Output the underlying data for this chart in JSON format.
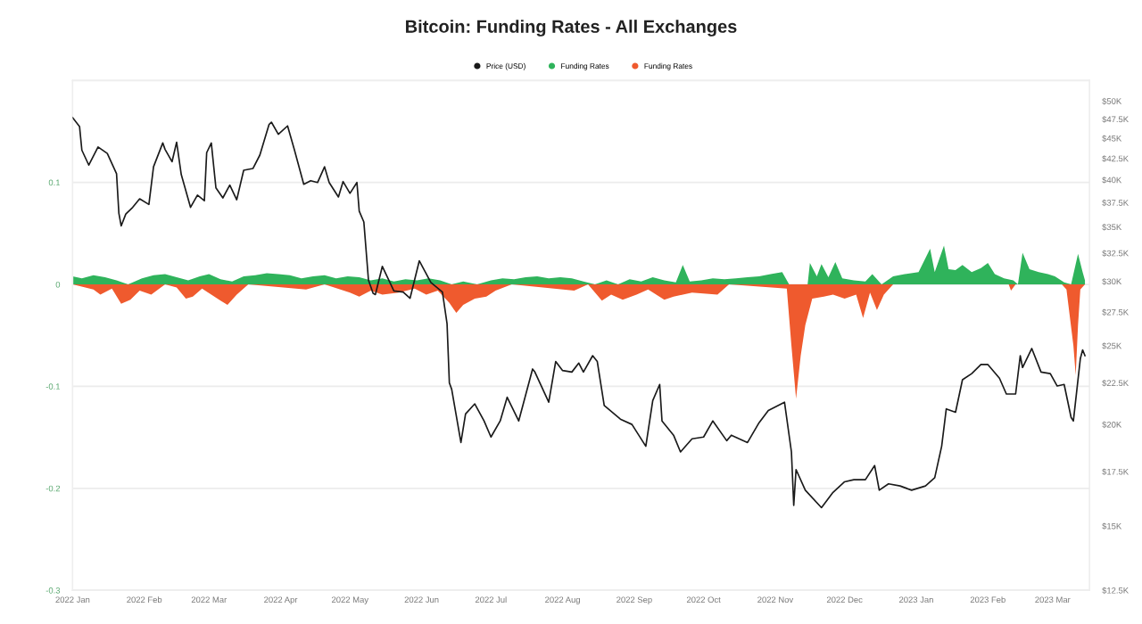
{
  "chart_data": {
    "type": "line",
    "title": "Bitcoin: Funding Rates - All Exchanges",
    "legend": "top",
    "grid": "y",
    "log": "y2",
    "xlim": [
      "2022-01-01",
      "2023-03-17"
    ],
    "xticks": [
      {
        "value": "2022-01-01",
        "label": "2022 Jan"
      },
      {
        "value": "2022-02-01",
        "label": "2022 Feb"
      },
      {
        "value": "2022-03-01",
        "label": "2022 Mar"
      },
      {
        "value": "2022-04-01",
        "label": "2022 Apr"
      },
      {
        "value": "2022-05-01",
        "label": "2022 May"
      },
      {
        "value": "2022-06-01",
        "label": "2022 Jun"
      },
      {
        "value": "2022-07-01",
        "label": "2022 Jul"
      },
      {
        "value": "2022-08-01",
        "label": "2022 Aug"
      },
      {
        "value": "2022-09-01",
        "label": "2022 Sep"
      },
      {
        "value": "2022-10-01",
        "label": "2022 Oct"
      },
      {
        "value": "2022-11-01",
        "label": "2022 Nov"
      },
      {
        "value": "2022-12-01",
        "label": "2022 Dec"
      },
      {
        "value": "2023-01-01",
        "label": "2023 Jan"
      },
      {
        "value": "2023-02-01",
        "label": "2023 Feb"
      },
      {
        "value": "2023-03-01",
        "label": "2023 Mar"
      }
    ],
    "ylim": [
      -0.3,
      0.2
    ],
    "yticks": [
      {
        "value": 0.2,
        "label": null
      },
      0.1,
      0,
      -0.1,
      -0.2,
      -0.3
    ],
    "y2lim": [
      12500,
      53000
    ],
    "y2ticks": [
      {
        "value": 12500,
        "label": "$12.5K"
      },
      {
        "value": 15000,
        "label": "$15K"
      },
      {
        "value": 17500,
        "label": "$17.5K"
      },
      {
        "value": 20000,
        "label": "$20K"
      },
      {
        "value": 22500,
        "label": "$22.5K"
      },
      {
        "value": 25000,
        "label": "$25K"
      },
      {
        "value": 27500,
        "label": "$27.5K"
      },
      {
        "value": 30000,
        "label": "$30K"
      },
      {
        "value": 32500,
        "label": "$32.5K"
      },
      {
        "value": 35000,
        "label": "$35K"
      },
      {
        "value": 37500,
        "label": "$37.5K"
      },
      {
        "value": 40000,
        "label": "$40K"
      },
      {
        "value": 42500,
        "label": "$42.5K"
      },
      {
        "value": 45000,
        "label": "$45K"
      },
      {
        "value": 47500,
        "label": "$47.5K"
      },
      {
        "value": 50000,
        "label": "$50K"
      }
    ],
    "series": [
      {
        "name": "Price (USD)",
        "axis": "y2",
        "color": "#1a1a1a",
        "x": [
          "2022-01-01",
          "2022-01-04",
          "2022-01-05",
          "2022-01-08",
          "2022-01-12",
          "2022-01-16",
          "2022-01-20",
          "2022-01-21",
          "2022-01-22",
          "2022-01-24",
          "2022-01-27",
          "2022-01-30",
          "2022-02-03",
          "2022-02-05",
          "2022-02-09",
          "2022-02-10",
          "2022-02-13",
          "2022-02-15",
          "2022-02-17",
          "2022-02-21",
          "2022-02-24",
          "2022-02-27",
          "2022-02-28",
          "2022-03-02",
          "2022-03-04",
          "2022-03-07",
          "2022-03-10",
          "2022-03-13",
          "2022-03-16",
          "2022-03-20",
          "2022-03-23",
          "2022-03-27",
          "2022-03-28",
          "2022-03-31",
          "2022-04-04",
          "2022-04-07",
          "2022-04-11",
          "2022-04-14",
          "2022-04-17",
          "2022-04-20",
          "2022-04-22",
          "2022-04-26",
          "2022-04-28",
          "2022-05-01",
          "2022-05-04",
          "2022-05-05",
          "2022-05-07",
          "2022-05-09",
          "2022-05-11",
          "2022-05-12",
          "2022-05-15",
          "2022-05-20",
          "2022-05-24",
          "2022-05-27",
          "2022-05-31",
          "2022-06-05",
          "2022-06-10",
          "2022-06-12",
          "2022-06-13",
          "2022-06-14",
          "2022-06-18",
          "2022-06-20",
          "2022-06-24",
          "2022-06-28",
          "2022-07-01",
          "2022-07-05",
          "2022-07-08",
          "2022-07-13",
          "2022-07-19",
          "2022-07-20",
          "2022-07-26",
          "2022-07-29",
          "2022-08-01",
          "2022-08-05",
          "2022-08-08",
          "2022-08-10",
          "2022-08-14",
          "2022-08-16",
          "2022-08-19",
          "2022-08-26",
          "2022-08-31",
          "2022-09-06",
          "2022-09-09",
          "2022-09-12",
          "2022-09-13",
          "2022-09-18",
          "2022-09-21",
          "2022-09-26",
          "2022-10-01",
          "2022-10-05",
          "2022-10-11",
          "2022-10-13",
          "2022-10-20",
          "2022-10-25",
          "2022-10-29",
          "2022-11-05",
          "2022-11-08",
          "2022-11-09",
          "2022-11-10",
          "2022-11-14",
          "2022-11-21",
          "2022-11-26",
          "2022-12-01",
          "2022-12-05",
          "2022-12-10",
          "2022-12-14",
          "2022-12-16",
          "2022-12-20",
          "2022-12-25",
          "2022-12-30",
          "2023-01-05",
          "2023-01-09",
          "2023-01-12",
          "2023-01-14",
          "2023-01-18",
          "2023-01-21",
          "2023-01-25",
          "2023-01-29",
          "2023-02-01",
          "2023-02-06",
          "2023-02-09",
          "2023-02-13",
          "2023-02-15",
          "2023-02-16",
          "2023-02-20",
          "2023-02-24",
          "2023-02-28",
          "2023-03-03",
          "2023-03-06",
          "2023-03-09",
          "2023-03-10",
          "2023-03-13",
          "2023-03-14",
          "2023-03-15"
        ],
        "values": [
          47700,
          46500,
          43500,
          41700,
          43900,
          43100,
          40700,
          36400,
          35100,
          36300,
          37000,
          37900,
          37300,
          41500,
          44400,
          43600,
          42100,
          44500,
          40600,
          37000,
          38300,
          37700,
          43200,
          44400,
          39100,
          38000,
          39400,
          37800,
          41100,
          41300,
          42900,
          46800,
          47100,
          45500,
          46600,
          43500,
          39500,
          39900,
          39700,
          41500,
          39700,
          38100,
          39800,
          38500,
          39700,
          36600,
          35500,
          30100,
          29000,
          28900,
          31300,
          29200,
          29100,
          28600,
          31800,
          29900,
          29100,
          26600,
          22500,
          22100,
          19000,
          20600,
          21200,
          20200,
          19300,
          20200,
          21600,
          20200,
          23400,
          23200,
          21300,
          23900,
          23300,
          23200,
          23800,
          23200,
          24300,
          23900,
          21100,
          20300,
          20000,
          18800,
          21400,
          22400,
          20200,
          19400,
          18500,
          19200,
          19300,
          20200,
          19100,
          19400,
          19000,
          20100,
          20800,
          21300,
          18500,
          15900,
          17600,
          16600,
          15800,
          16500,
          17000,
          17100,
          17100,
          17800,
          16600,
          16900,
          16800,
          16600,
          16800,
          17200,
          18800,
          20900,
          20700,
          22700,
          23100,
          23700,
          23700,
          22800,
          21800,
          21800,
          24300,
          23500,
          24800,
          23200,
          23100,
          22300,
          22400,
          20400,
          20200,
          24100,
          24700,
          24300
        ]
      },
      {
        "name": "Funding Rates",
        "type": "area",
        "color": "#2fb35b",
        "x": [
          "2022-01-01",
          "2022-01-05",
          "2022-01-10",
          "2022-01-15",
          "2022-01-20",
          "2022-01-25",
          "2022-01-31",
          "2022-02-05",
          "2022-02-10",
          "2022-02-15",
          "2022-02-20",
          "2022-02-25",
          "2022-03-01",
          "2022-03-06",
          "2022-03-11",
          "2022-03-16",
          "2022-03-21",
          "2022-03-26",
          "2022-03-31",
          "2022-04-05",
          "2022-04-10",
          "2022-04-15",
          "2022-04-20",
          "2022-04-25",
          "2022-04-30",
          "2022-05-05",
          "2022-05-10",
          "2022-05-15",
          "2022-05-20",
          "2022-05-25",
          "2022-05-30",
          "2022-06-04",
          "2022-06-09",
          "2022-06-14",
          "2022-06-19",
          "2022-06-25",
          "2022-07-01",
          "2022-07-06",
          "2022-07-11",
          "2022-07-16",
          "2022-07-21",
          "2022-07-26",
          "2022-07-31",
          "2022-08-05",
          "2022-08-10",
          "2022-08-15",
          "2022-08-20",
          "2022-08-25",
          "2022-08-30",
          "2022-09-04",
          "2022-09-09",
          "2022-09-14",
          "2022-09-19",
          "2022-09-22",
          "2022-09-25",
          "2022-09-30",
          "2022-10-05",
          "2022-10-10",
          "2022-10-15",
          "2022-10-20",
          "2022-10-25",
          "2022-10-30",
          "2022-11-04",
          "2022-11-07",
          "2022-11-15",
          "2022-11-16",
          "2022-11-19",
          "2022-11-21",
          "2022-11-24",
          "2022-11-27",
          "2022-11-30",
          "2022-12-05",
          "2022-12-10",
          "2022-12-13",
          "2022-12-17",
          "2022-12-22",
          "2022-12-27",
          "2023-01-02",
          "2023-01-07",
          "2023-01-09",
          "2023-01-13",
          "2023-01-15",
          "2023-01-18",
          "2023-01-21",
          "2023-01-25",
          "2023-01-29",
          "2023-02-01",
          "2023-02-04",
          "2023-02-08",
          "2023-02-12",
          "2023-02-14",
          "2023-02-16",
          "2023-02-19",
          "2023-02-23",
          "2023-02-27",
          "2023-03-02",
          "2023-03-06",
          "2023-03-09",
          "2023-03-12",
          "2023-03-14",
          "2023-03-15"
        ],
        "values": [
          0.008,
          0.006,
          0.009,
          0.007,
          0.004,
          0.0,
          0.006,
          0.009,
          0.01,
          0.007,
          0.004,
          0.008,
          0.01,
          0.005,
          0.003,
          0.008,
          0.009,
          0.011,
          0.01,
          0.009,
          0.006,
          0.008,
          0.009,
          0.006,
          0.008,
          0.007,
          0.004,
          0.006,
          0.003,
          0.005,
          0.004,
          0.006,
          0.004,
          0.0,
          0.003,
          0.0,
          0.004,
          0.006,
          0.005,
          0.007,
          0.008,
          0.006,
          0.007,
          0.006,
          0.003,
          0.0,
          0.004,
          0.0,
          0.005,
          0.003,
          0.007,
          0.004,
          0.002,
          0.019,
          0.003,
          0.004,
          0.006,
          0.005,
          0.006,
          0.007,
          0.008,
          0.01,
          0.012,
          0.0,
          0.0,
          0.021,
          0.008,
          0.02,
          0.007,
          0.022,
          0.006,
          0.004,
          0.003,
          0.01,
          0.0,
          0.008,
          0.01,
          0.012,
          0.035,
          0.012,
          0.038,
          0.015,
          0.014,
          0.019,
          0.012,
          0.016,
          0.021,
          0.01,
          0.006,
          0.004,
          0.0,
          0.031,
          0.015,
          0.012,
          0.01,
          0.008,
          0.002,
          0.0,
          0.03,
          0.012,
          0.004
        ]
      },
      {
        "name": "Funding Rates",
        "type": "area",
        "color": "#ef5a2e",
        "x": [
          "2022-01-01",
          "2022-01-10",
          "2022-01-13",
          "2022-01-18",
          "2022-01-22",
          "2022-01-26",
          "2022-01-30",
          "2022-02-04",
          "2022-02-10",
          "2022-02-15",
          "2022-02-19",
          "2022-02-22",
          "2022-02-26",
          "2022-03-06",
          "2022-03-09",
          "2022-03-13",
          "2022-03-18",
          "2022-04-12",
          "2022-04-20",
          "2022-05-01",
          "2022-05-05",
          "2022-05-10",
          "2022-05-15",
          "2022-05-22",
          "2022-05-29",
          "2022-06-03",
          "2022-06-08",
          "2022-06-13",
          "2022-06-16",
          "2022-06-19",
          "2022-06-24",
          "2022-06-29",
          "2022-07-03",
          "2022-07-10",
          "2022-08-06",
          "2022-08-12",
          "2022-08-18",
          "2022-08-22",
          "2022-08-27",
          "2022-09-02",
          "2022-09-07",
          "2022-09-14",
          "2022-09-18",
          "2022-09-26",
          "2022-10-07",
          "2022-10-12",
          "2022-11-06",
          "2022-11-08",
          "2022-11-10",
          "2022-11-12",
          "2022-11-14",
          "2022-11-17",
          "2022-11-22",
          "2022-11-26",
          "2022-12-01",
          "2022-12-06",
          "2022-12-09",
          "2022-12-12",
          "2022-12-15",
          "2022-12-18",
          "2022-12-22",
          "2023-02-10",
          "2023-02-11",
          "2023-02-13",
          "2023-03-05",
          "2023-03-07",
          "2023-03-10",
          "2023-03-11",
          "2023-03-12",
          "2023-03-13",
          "2023-03-15"
        ],
        "values": [
          0.0,
          -0.005,
          -0.01,
          -0.004,
          -0.019,
          -0.015,
          -0.006,
          -0.01,
          0.0,
          -0.003,
          -0.014,
          -0.012,
          -0.004,
          -0.016,
          -0.02,
          -0.01,
          0.0,
          -0.005,
          0.0,
          -0.008,
          -0.012,
          -0.006,
          -0.01,
          -0.008,
          -0.004,
          -0.01,
          -0.006,
          -0.018,
          -0.028,
          -0.02,
          -0.014,
          -0.012,
          -0.006,
          0.0,
          -0.006,
          0.0,
          -0.016,
          -0.01,
          -0.015,
          -0.01,
          -0.005,
          -0.015,
          -0.012,
          -0.008,
          -0.01,
          0.0,
          -0.004,
          -0.06,
          -0.112,
          -0.07,
          -0.04,
          -0.014,
          -0.012,
          -0.01,
          -0.014,
          -0.01,
          -0.033,
          -0.008,
          -0.025,
          -0.01,
          0.0,
          0.0,
          -0.006,
          0.0,
          0.0,
          -0.005,
          -0.06,
          -0.089,
          -0.04,
          -0.005,
          0.0
        ]
      }
    ]
  }
}
